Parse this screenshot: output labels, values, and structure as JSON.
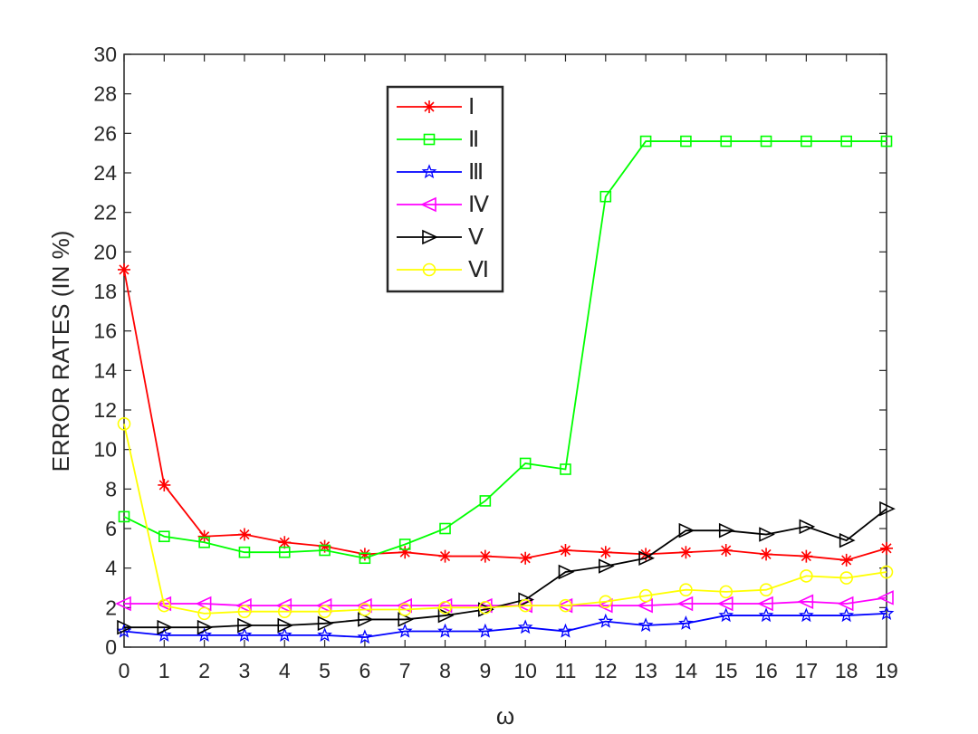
{
  "chart_data": {
    "type": "line",
    "title": "",
    "xlabel": "ω",
    "ylabel": "ERROR RATES (IN %)",
    "xlim": [
      0,
      19
    ],
    "ylim": [
      0,
      30
    ],
    "x_ticks": [
      0,
      1,
      2,
      3,
      4,
      5,
      6,
      7,
      8,
      9,
      10,
      11,
      12,
      13,
      14,
      15,
      16,
      17,
      18,
      19
    ],
    "y_ticks": [
      0,
      2,
      4,
      6,
      8,
      10,
      12,
      14,
      16,
      18,
      20,
      22,
      24,
      26,
      28,
      30
    ],
    "grid": false,
    "legend_position": "top-center",
    "x": [
      0,
      1,
      2,
      3,
      4,
      5,
      6,
      7,
      8,
      9,
      10,
      11,
      12,
      13,
      14,
      15,
      16,
      17,
      18,
      19
    ],
    "series": [
      {
        "name": "Ⅰ",
        "color": "#ff0000",
        "marker": "asterisk",
        "values": [
          19.1,
          8.2,
          5.6,
          5.7,
          5.3,
          5.1,
          4.7,
          4.8,
          4.6,
          4.6,
          4.5,
          4.9,
          4.8,
          4.7,
          4.8,
          4.9,
          4.7,
          4.6,
          4.4,
          5.0
        ]
      },
      {
        "name": "Ⅱ",
        "color": "#00ff00",
        "marker": "square",
        "values": [
          6.6,
          5.6,
          5.3,
          4.8,
          4.8,
          4.9,
          4.5,
          5.2,
          6.0,
          7.4,
          9.3,
          9.0,
          22.8,
          25.6,
          25.6,
          25.6,
          25.6,
          25.6,
          25.6,
          25.6
        ]
      },
      {
        "name": "Ⅲ",
        "color": "#0000ff",
        "marker": "pentagram",
        "values": [
          0.8,
          0.6,
          0.6,
          0.6,
          0.6,
          0.6,
          0.5,
          0.8,
          0.8,
          0.8,
          1.0,
          0.8,
          1.3,
          1.1,
          1.2,
          1.6,
          1.6,
          1.6,
          1.6,
          1.7
        ]
      },
      {
        "name": "Ⅳ",
        "color": "#ff00ff",
        "marker": "triangle-left",
        "values": [
          2.2,
          2.2,
          2.2,
          2.1,
          2.1,
          2.1,
          2.1,
          2.1,
          2.1,
          2.1,
          2.1,
          2.1,
          2.1,
          2.1,
          2.2,
          2.2,
          2.2,
          2.3,
          2.2,
          2.5
        ]
      },
      {
        "name": "Ⅴ",
        "color": "#000000",
        "marker": "triangle-right",
        "values": [
          1.0,
          1.0,
          1.0,
          1.1,
          1.1,
          1.2,
          1.4,
          1.4,
          1.6,
          1.9,
          2.4,
          3.8,
          4.1,
          4.5,
          5.9,
          5.9,
          5.7,
          6.1,
          5.4,
          7.0
        ]
      },
      {
        "name": "Ⅵ",
        "color": "#ffff00",
        "marker": "circle",
        "values": [
          11.3,
          2.1,
          1.7,
          1.8,
          1.8,
          1.8,
          1.9,
          1.9,
          2.0,
          2.0,
          2.1,
          2.1,
          2.3,
          2.6,
          2.9,
          2.8,
          2.9,
          3.6,
          3.5,
          3.8
        ]
      }
    ]
  }
}
